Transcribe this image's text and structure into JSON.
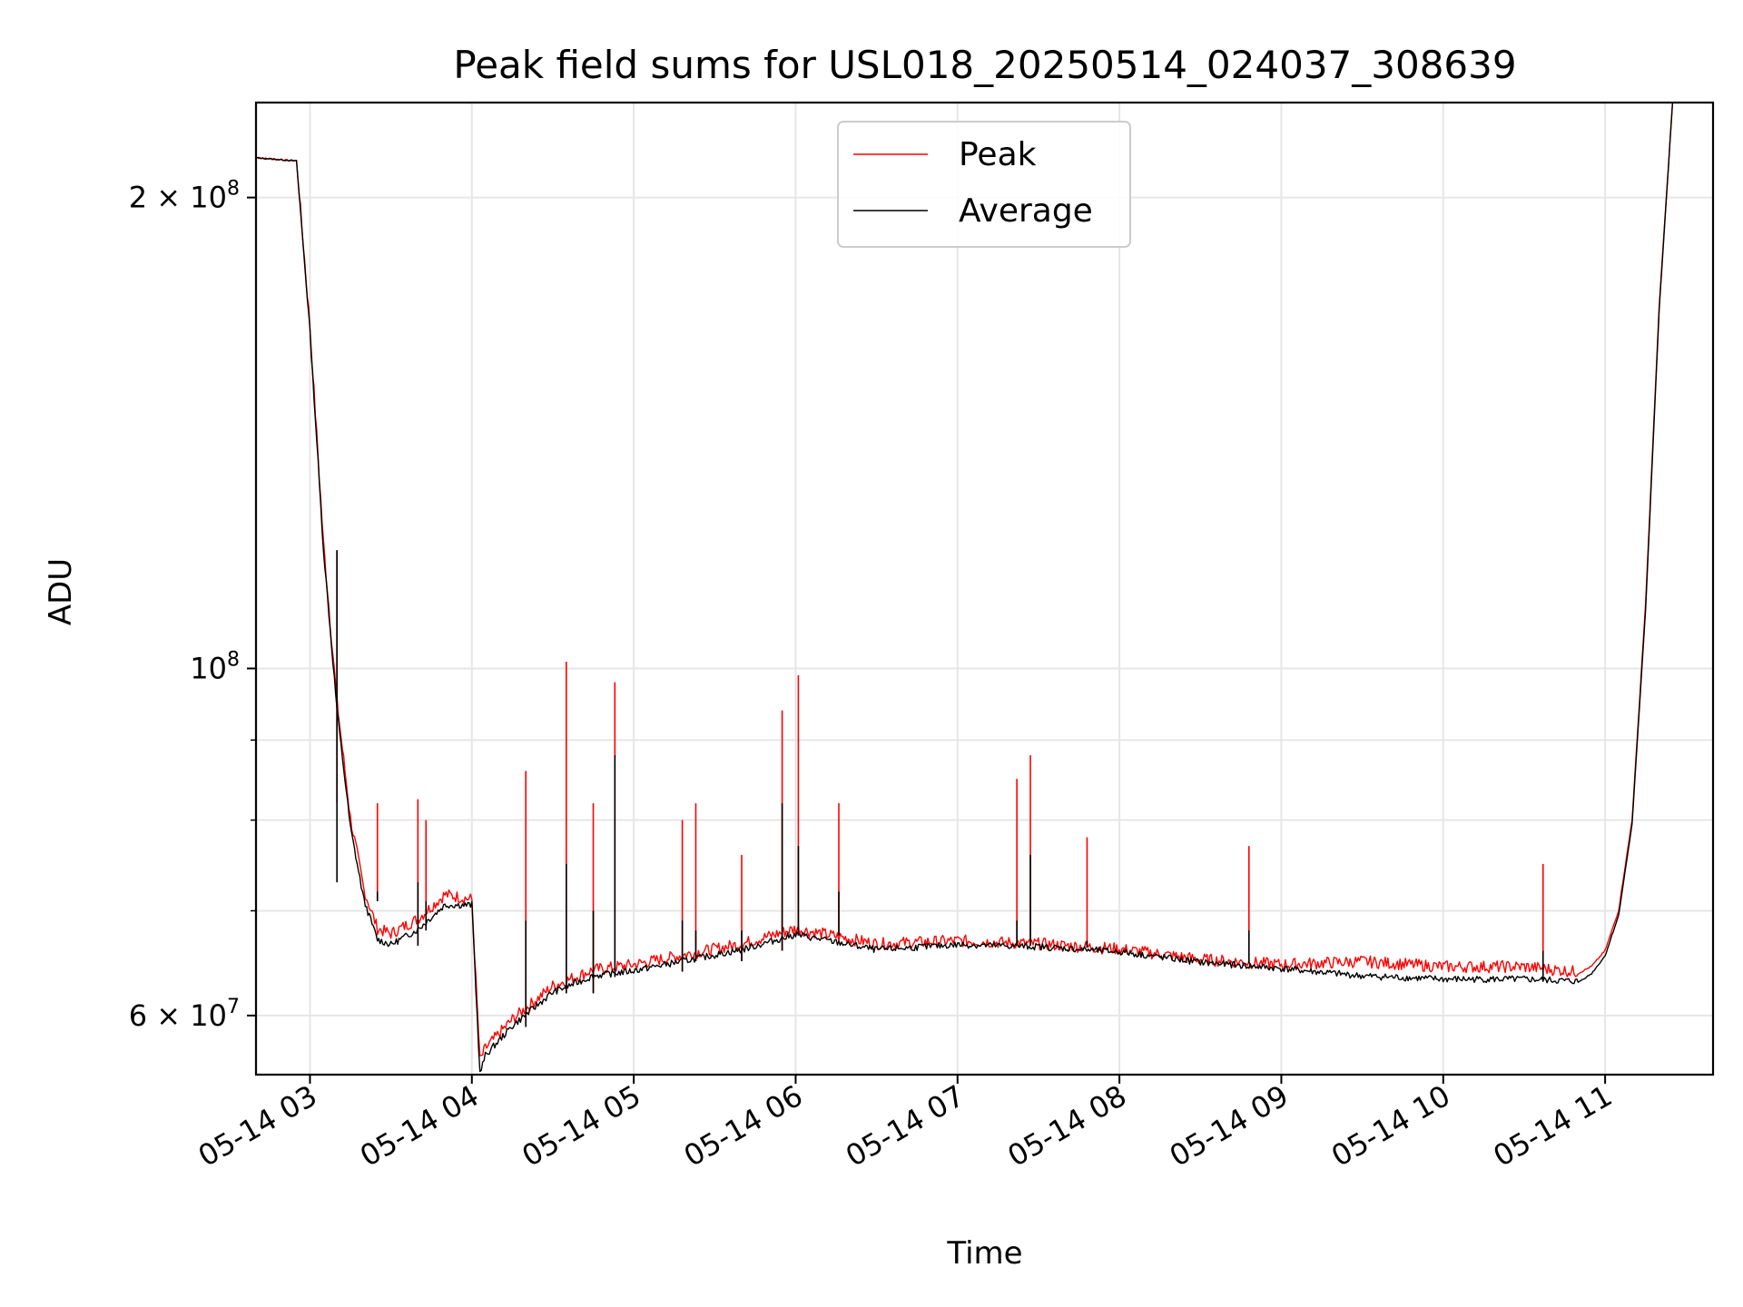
{
  "chart_data": {
    "type": "line",
    "title": "Peak field sums for USL018_20250514_024037_308639",
    "xlabel": "Time",
    "ylabel": "ADU",
    "x_scale": "time",
    "y_scale": "log",
    "xlim": [
      "05-14 02:40",
      "05-14 11:40"
    ],
    "ylim": [
      55000000,
      230000000
    ],
    "x_ticks": [
      "05-14 03",
      "05-14 04",
      "05-14 05",
      "05-14 06",
      "05-14 07",
      "05-14 08",
      "05-14 09",
      "05-14 10",
      "05-14 11"
    ],
    "y_ticks": [
      {
        "value": 60000000,
        "label": "6 × 10",
        "exp": "7"
      },
      {
        "value": 100000000,
        "label": "10",
        "exp": "8"
      },
      {
        "value": 200000000,
        "label": "2 × 10",
        "exp": "8"
      }
    ],
    "grid": true,
    "legend_position": "top-center",
    "series": [
      {
        "name": "Peak",
        "color": "#ff0000",
        "x": [
          "05-14 02:40",
          "05-14 02:55",
          "05-14 03:00",
          "05-14 03:05",
          "05-14 03:10",
          "05-14 03:15",
          "05-14 03:20",
          "05-14 03:25",
          "05-14 03:30",
          "05-14 03:40",
          "05-14 03:50",
          "05-14 04:00",
          "05-14 04:03",
          "05-14 04:05",
          "05-14 04:15",
          "05-14 04:30",
          "05-14 04:45",
          "05-14 05:00",
          "05-14 05:20",
          "05-14 05:40",
          "05-14 06:00",
          "05-14 06:30",
          "05-14 07:00",
          "05-14 07:30",
          "05-14 08:00",
          "05-14 08:30",
          "05-14 09:00",
          "05-14 09:30",
          "05-14 10:00",
          "05-14 10:30",
          "05-14 10:50",
          "05-14 10:55",
          "05-14 11:00",
          "05-14 11:05",
          "05-14 11:10",
          "05-14 11:15",
          "05-14 11:20",
          "05-14 11:25"
        ],
        "values": [
          212000000,
          211000000,
          165000000,
          120000000,
          95000000,
          80000000,
          72000000,
          68000000,
          67500000,
          69000000,
          71500000,
          71000000,
          56000000,
          57000000,
          59500000,
          62500000,
          64000000,
          64500000,
          65500000,
          66500000,
          68000000,
          66500000,
          66800000,
          66500000,
          66000000,
          65000000,
          64500000,
          64800000,
          64300000,
          64300000,
          63800000,
          64500000,
          66000000,
          70000000,
          80000000,
          110000000,
          170000000,
          230000000
        ]
      },
      {
        "name": "Average",
        "color": "#000000",
        "x": [
          "05-14 02:40",
          "05-14 02:55",
          "05-14 03:00",
          "05-14 03:05",
          "05-14 03:10",
          "05-14 03:15",
          "05-14 03:20",
          "05-14 03:25",
          "05-14 03:30",
          "05-14 03:40",
          "05-14 03:50",
          "05-14 04:00",
          "05-14 04:03",
          "05-14 04:05",
          "05-14 04:15",
          "05-14 04:30",
          "05-14 04:45",
          "05-14 05:00",
          "05-14 05:20",
          "05-14 05:40",
          "05-14 06:00",
          "05-14 06:30",
          "05-14 07:00",
          "05-14 07:30",
          "05-14 08:00",
          "05-14 08:30",
          "05-14 09:00",
          "05-14 09:30",
          "05-14 10:00",
          "05-14 10:30",
          "05-14 10:50",
          "05-14 10:55",
          "05-14 11:00",
          "05-14 11:05",
          "05-14 11:10",
          "05-14 11:15",
          "05-14 11:20",
          "05-14 11:25"
        ],
        "values": [
          212000000,
          211000000,
          164000000,
          119000000,
          94000000,
          79000000,
          71000000,
          67000000,
          66500000,
          68000000,
          70500000,
          70500000,
          55000000,
          56500000,
          59000000,
          62000000,
          63500000,
          64000000,
          65000000,
          66000000,
          67500000,
          66000000,
          66500000,
          66300000,
          65800000,
          64800000,
          64200000,
          63500000,
          63200000,
          63200000,
          63000000,
          63800000,
          65500000,
          69500000,
          79500000,
          109000000,
          169000000,
          230000000
        ]
      }
    ],
    "spikes": {
      "x": [
        "05-14 03:10",
        "05-14 03:25",
        "05-14 03:40",
        "05-14 03:43",
        "05-14 04:20",
        "05-14 04:35",
        "05-14 04:45",
        "05-14 04:53",
        "05-14 05:18",
        "05-14 05:23",
        "05-14 05:40",
        "05-14 05:55",
        "05-14 06:01",
        "05-14 06:16",
        "05-14 07:22",
        "05-14 07:27",
        "05-14 07:48",
        "05-14 08:48",
        "05-14 10:37"
      ],
      "peak": [
        82000000,
        82000000,
        82500000,
        80000000,
        86000000,
        101000000,
        82000000,
        98000000,
        80000000,
        82000000,
        76000000,
        94000000,
        99000000,
        82000000,
        85000000,
        88000000,
        78000000,
        77000000,
        75000000
      ],
      "average": [
        73000000,
        72000000,
        73000000,
        71000000,
        69000000,
        75000000,
        70000000,
        88000000,
        69000000,
        68000000,
        68000000,
        82000000,
        77000000,
        72000000,
        69000000,
        76000000,
        67000000,
        68000000,
        66000000
      ]
    }
  }
}
